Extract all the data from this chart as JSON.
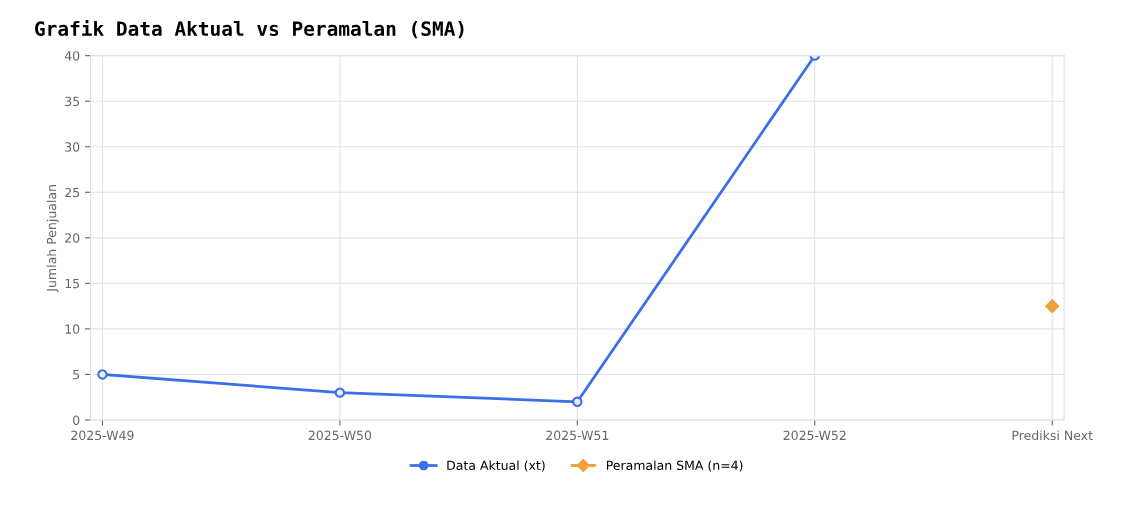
{
  "chart_data": {
    "type": "line",
    "title": "Grafik Data Aktual vs Peramalan (SMA)",
    "ylabel": "Jumlah Penjualan",
    "categories": [
      "2025-W49",
      "2025-W50",
      "2025-W51",
      "2025-W52",
      "Prediksi Next"
    ],
    "series": [
      {
        "name": "Data Aktual (xt)",
        "color": "#3b6fe8",
        "values": [
          5,
          3,
          2,
          40,
          null
        ],
        "marker": "circle",
        "line_style": "solid"
      },
      {
        "name": "Peramalan SMA (n=4)",
        "color": "#f0a13a",
        "values": [
          null,
          null,
          null,
          null,
          12.5
        ],
        "marker": "diamond",
        "line_style": "dashed"
      }
    ],
    "ylim": [
      0,
      40
    ],
    "yticks": [
      0,
      5,
      10,
      15,
      20,
      25,
      30,
      35,
      40
    ],
    "grid": true,
    "legend": "bottom"
  }
}
